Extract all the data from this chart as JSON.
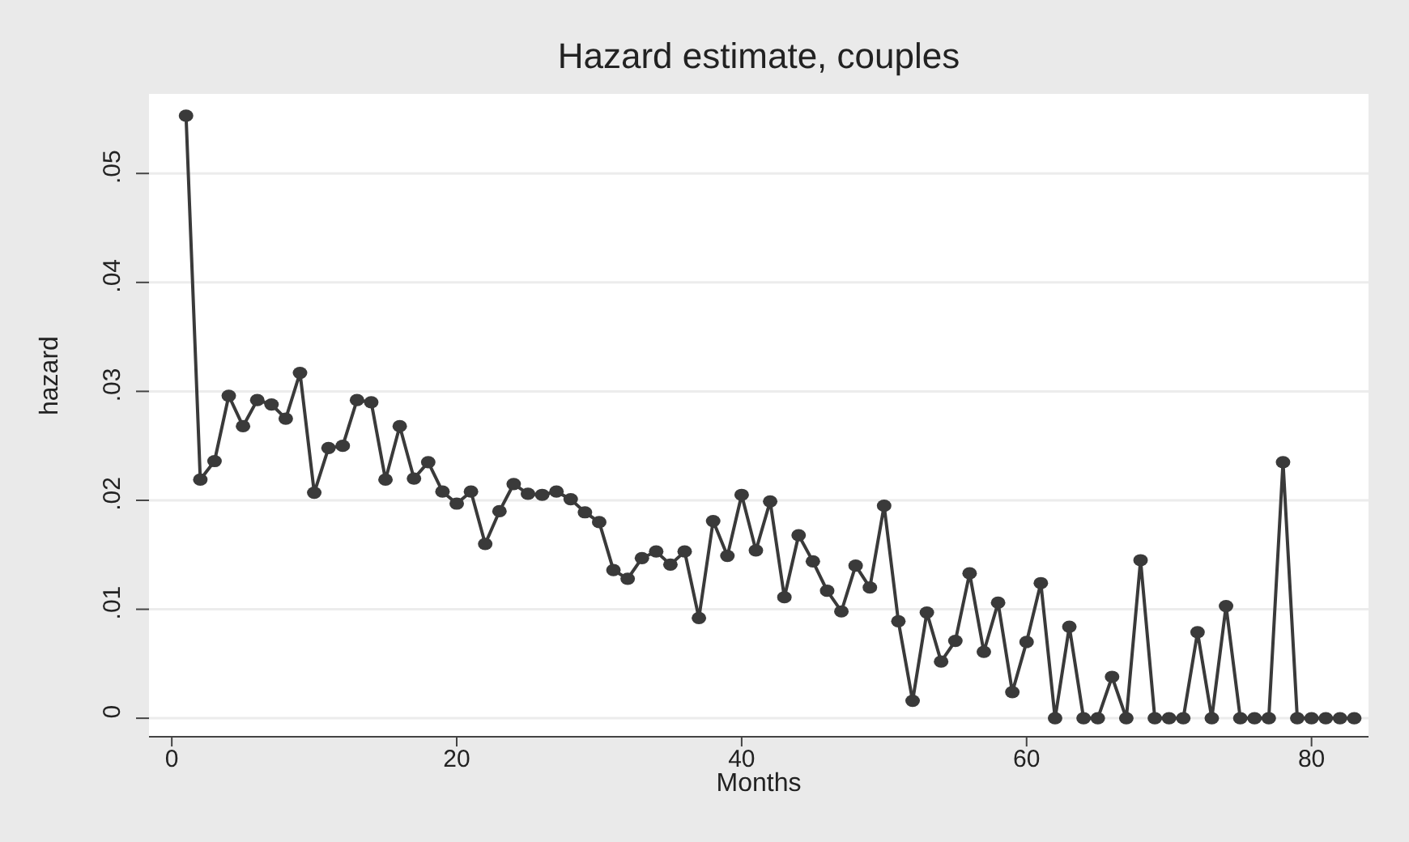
{
  "chart_data": {
    "type": "line",
    "title": "Hazard estimate, couples",
    "xlabel": "Months",
    "ylabel": "hazard",
    "x": [
      1,
      2,
      3,
      4,
      5,
      6,
      7,
      8,
      9,
      10,
      11,
      12,
      13,
      14,
      15,
      16,
      17,
      18,
      19,
      20,
      21,
      22,
      23,
      24,
      25,
      26,
      27,
      28,
      29,
      30,
      31,
      32,
      33,
      34,
      35,
      36,
      37,
      38,
      39,
      40,
      41,
      42,
      43,
      44,
      45,
      46,
      47,
      48,
      49,
      50,
      51,
      52,
      53,
      54,
      55,
      56,
      57,
      58,
      59,
      60,
      61,
      62,
      63,
      64,
      65,
      66,
      67,
      68,
      69,
      70,
      71,
      72,
      73,
      74,
      75,
      76,
      77,
      78,
      79,
      80,
      81,
      82,
      83
    ],
    "series": [
      {
        "color": "#3a3a3a",
        "values": [
          0.0553,
          0.0219,
          0.0236,
          0.0296,
          0.0268,
          0.0292,
          0.0288,
          0.0275,
          0.0317,
          0.0207,
          0.0248,
          0.025,
          0.0292,
          0.029,
          0.0219,
          0.0268,
          0.022,
          0.0235,
          0.0208,
          0.0197,
          0.0208,
          0.016,
          0.019,
          0.0215,
          0.0206,
          0.0205,
          0.0208,
          0.0201,
          0.0189,
          0.018,
          0.0136,
          0.0128,
          0.0147,
          0.0153,
          0.0141,
          0.0153,
          0.0092,
          0.0181,
          0.0149,
          0.0205,
          0.0154,
          0.0199,
          0.0111,
          0.0168,
          0.0144,
          0.0117,
          0.0098,
          0.014,
          0.012,
          0.0195,
          0.0089,
          0.0016,
          0.0097,
          0.0052,
          0.0071,
          0.0133,
          0.0061,
          0.0106,
          0.0024,
          0.007,
          0.0124,
          0,
          0.0084,
          0,
          0,
          0.0038,
          0,
          0.0145,
          0,
          0,
          0,
          0.0079,
          0,
          0.0103,
          0,
          0,
          0,
          0.0235,
          0,
          0,
          0,
          0,
          0
        ]
      }
    ],
    "xlim": [
      -1.6,
      84
    ],
    "xticks": [
      0,
      20,
      40,
      60,
      80
    ],
    "ylim": [
      -0.0017,
      0.0573
    ],
    "yticks": [
      {
        "value": 0,
        "label": "0"
      },
      {
        "value": 0.01,
        "label": ".01"
      },
      {
        "value": 0.02,
        "label": ".02"
      },
      {
        "value": 0.03,
        "label": ".03"
      },
      {
        "value": 0.04,
        "label": ".04"
      },
      {
        "value": 0.05,
        "label": ".05"
      }
    ],
    "grid": "y",
    "marker": "circle",
    "line_style": "solid",
    "legend": false
  }
}
